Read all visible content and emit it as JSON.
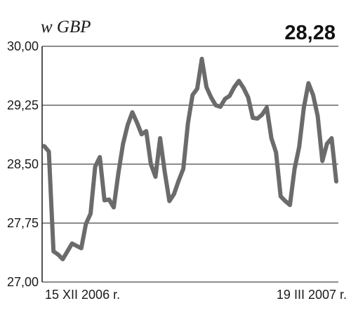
{
  "chart_data": {
    "type": "line",
    "unit_label": "w GBP",
    "last_value": "28,28",
    "y_ticks": [
      "30,00",
      "29,25",
      "28,50",
      "27,75",
      "27,00"
    ],
    "y_tick_values": [
      30.0,
      29.25,
      28.5,
      27.75,
      27.0
    ],
    "ylim": [
      27.0,
      30.0
    ],
    "x_start_label": "15 XII 2006 r.",
    "x_end_label": "19 III 2007 r.",
    "grid": "horizontal",
    "colors": {
      "series": "#6b6b6b",
      "grid": "#1a1a1a",
      "text": "#1a1a1a"
    },
    "series": [
      {
        "values": [
          28.73,
          28.66,
          27.39,
          27.35,
          27.29,
          27.39,
          27.49,
          27.46,
          27.43,
          27.74,
          27.87,
          28.47,
          28.59,
          28.04,
          28.05,
          27.95,
          28.39,
          28.76,
          29.0,
          29.16,
          29.03,
          28.88,
          28.92,
          28.5,
          28.34,
          28.83,
          28.4,
          28.03,
          28.12,
          28.29,
          28.44,
          29.02,
          29.38,
          29.46,
          29.84,
          29.48,
          29.35,
          29.25,
          29.23,
          29.33,
          29.37,
          29.48,
          29.56,
          29.47,
          29.35,
          29.09,
          29.08,
          29.13,
          29.22,
          28.83,
          28.65,
          28.09,
          28.03,
          27.98,
          28.44,
          28.72,
          29.22,
          29.53,
          29.38,
          29.11,
          28.54,
          28.76,
          28.83,
          28.28
        ]
      }
    ]
  }
}
